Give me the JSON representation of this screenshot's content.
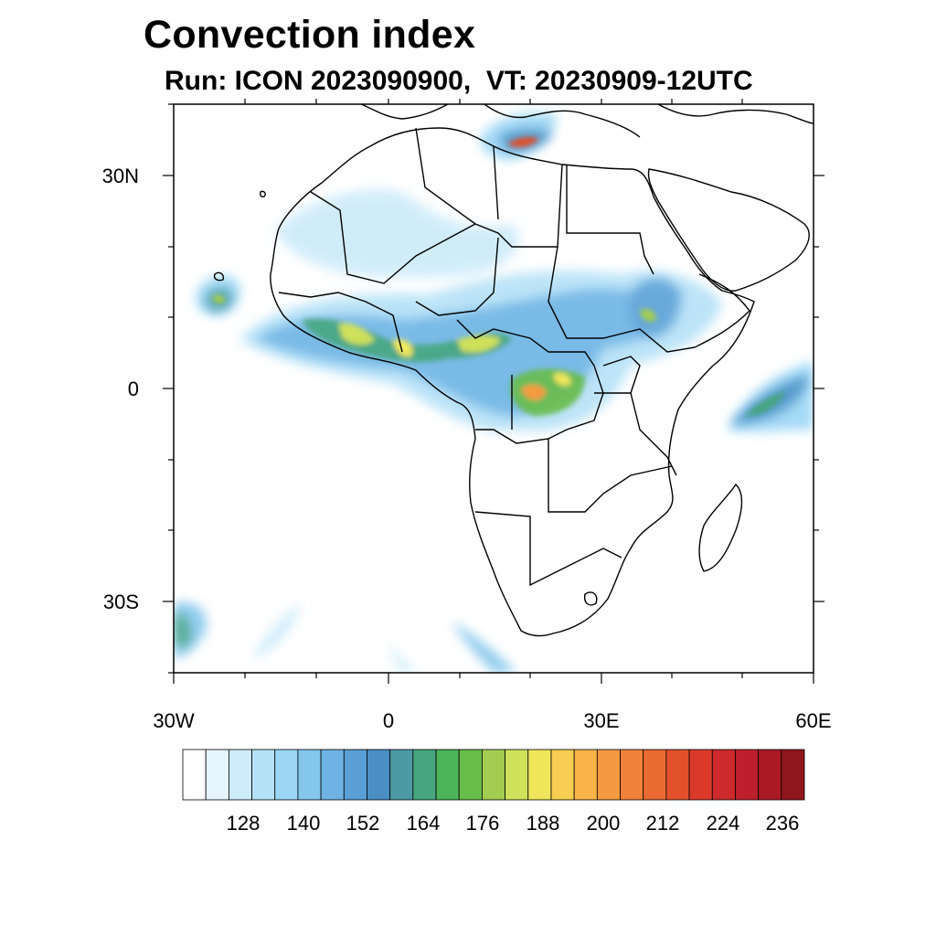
{
  "title": "Convection index",
  "subtitle": "Run: ICON 2023090900,  VT: 20230909-12UTC",
  "map": {
    "lat_range": [
      -40,
      40
    ],
    "lon_range": [
      -30,
      60
    ],
    "lat_ticks": [
      {
        "label": "30N",
        "value": 30
      },
      {
        "label": "0",
        "value": 0
      },
      {
        "label": "30S",
        "value": -30
      }
    ],
    "lon_ticks": [
      {
        "label": "30W",
        "value": -30
      },
      {
        "label": "0",
        "value": 0
      },
      {
        "label": "30E",
        "value": 30
      },
      {
        "label": "60E",
        "value": 60
      }
    ]
  },
  "colorbar": {
    "colors": [
      "#ffffff",
      "#e6f5fd",
      "#cdebf9",
      "#b5e1f7",
      "#9bd6f5",
      "#84c6ec",
      "#6eb3e4",
      "#5a9fd6",
      "#4a8ec4",
      "#4c9aa4",
      "#47a67e",
      "#4cb459",
      "#68bd4a",
      "#a3cd50",
      "#cfe05a",
      "#efe65c",
      "#f7cd52",
      "#f8b448",
      "#f59a40",
      "#f0813a",
      "#ea6a32",
      "#e3512c",
      "#db3a2b",
      "#cd2a2c",
      "#bd1f2c",
      "#a91a24",
      "#8e161c"
    ],
    "labels": [
      "128",
      "140",
      "152",
      "164",
      "176",
      "188",
      "200",
      "212",
      "224",
      "236"
    ]
  }
}
